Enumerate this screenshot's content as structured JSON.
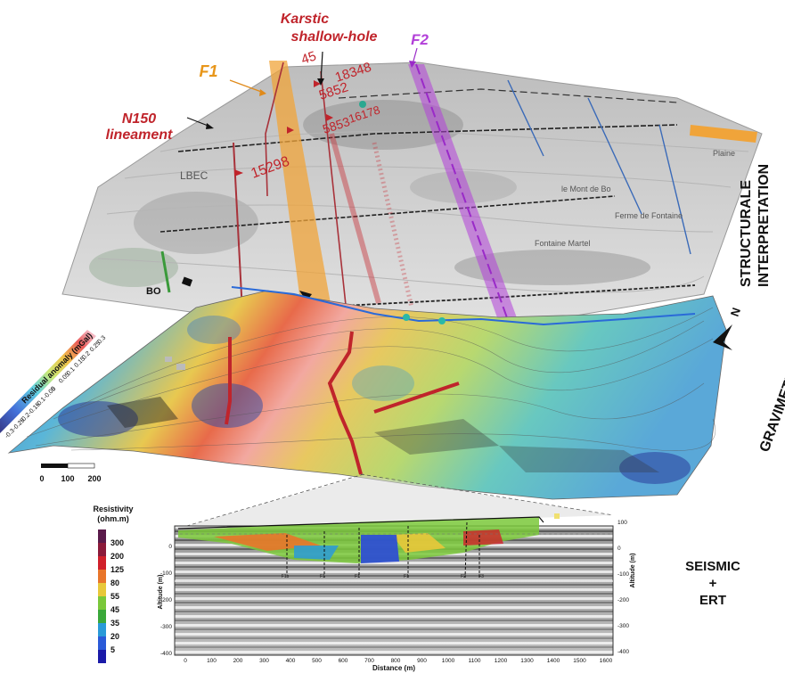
{
  "annotations": {
    "karstic_line1": "Karstic",
    "karstic_line2": "shallow-hole",
    "f1": "F1",
    "f2": "F2",
    "n150_line1": "N150",
    "n150_line2": "lineament",
    "wells": [
      "18348",
      "5852",
      "16178",
      "5853",
      "15298"
    ],
    "well_top": "45",
    "map_labels": [
      "LBEC",
      "le Mont de Bo",
      "Ferme de Fontaine",
      "Fontaine Martel",
      "Plaine"
    ],
    "bo_label": "BO"
  },
  "panels": {
    "structural_line1": "STRUCTURALE",
    "structural_line2": "INTERPRETATION",
    "gravimetry": "GRAVIMETRY",
    "seismic_line1": "SEISMIC",
    "seismic_line2": "+",
    "seismic_line3": "ERT"
  },
  "north_arrow": "N",
  "colors": {
    "f1": "#f0a43a",
    "f2": "#b23fd8",
    "annot_red": "#c0242b",
    "lineament": "#a8323a"
  },
  "gravity_legend": {
    "title": "Residual anomaly (mGal)",
    "ticks": [
      "0.3",
      "0.25",
      "0.2",
      "0.15",
      "0.1",
      "0.05",
      "0",
      "-0.05",
      "-0.1",
      "-0.15",
      "-0.2",
      "-0.25",
      "-0.3"
    ]
  },
  "scale_bar": {
    "labels": [
      "0",
      "100",
      "200"
    ]
  },
  "resistivity_legend": {
    "title_line1": "Resistivity",
    "title_line2": "(ohm.m)",
    "values": [
      "300",
      "200",
      "125",
      "80",
      "55",
      "45",
      "35",
      "20",
      "5"
    ],
    "colors": [
      "#5a1a4a",
      "#8b1a3a",
      "#d0202a",
      "#e8752a",
      "#e8c83a",
      "#7ac83a",
      "#3aa83a",
      "#2a9ad8",
      "#2a5ad8",
      "#1a1aa8"
    ]
  },
  "section": {
    "xlabel": "Distance (m)",
    "ylabel_left": "Altitude (m)",
    "ylabel_right": "Altitude (m)",
    "x_ticks": [
      "0",
      "100",
      "200",
      "300",
      "400",
      "500",
      "600",
      "700",
      "800",
      "900",
      "1000",
      "1100",
      "1200",
      "1300",
      "1400",
      "1500",
      "1600"
    ],
    "y_ticks_left": [
      "0",
      "-100",
      "-200",
      "-300",
      "-400"
    ],
    "y_ticks_right": [
      "100",
      "0",
      "-100",
      "-200",
      "-300",
      "-400"
    ],
    "fault_labels": [
      "F1b",
      "F1",
      "F1",
      "F1",
      "F2",
      "F3"
    ]
  }
}
